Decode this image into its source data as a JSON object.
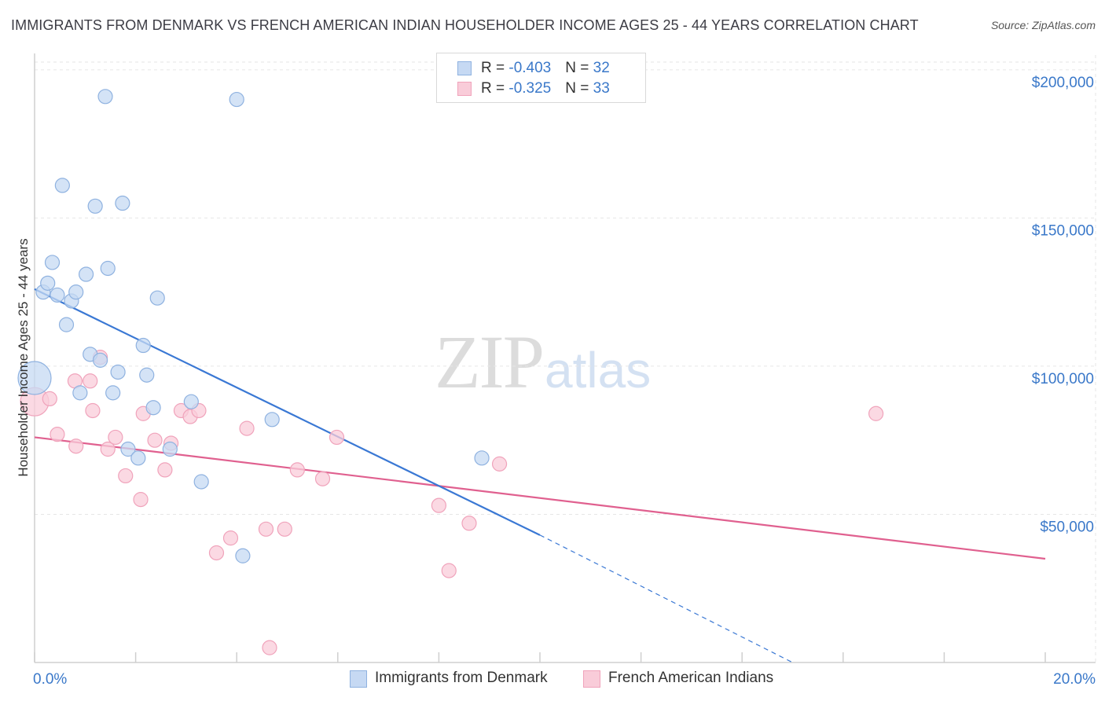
{
  "header": {
    "title": "IMMIGRANTS FROM DENMARK VS FRENCH AMERICAN INDIAN HOUSEHOLDER INCOME AGES 25 - 44 YEARS CORRELATION CHART",
    "source": "Source: ZipAtlas.com"
  },
  "watermark": {
    "zip": "ZIP",
    "atlas": "atlas"
  },
  "legend": {
    "rows": [
      {
        "r_label": "R = ",
        "r_value": "-0.403",
        "n_label": "N = ",
        "n_value": "32"
      },
      {
        "r_label": "R = ",
        "r_value": "-0.325",
        "n_label": "N = ",
        "n_value": "33"
      }
    ]
  },
  "colors": {
    "denmark_fill": "#c6d9f3",
    "denmark_stroke": "#8fb2e0",
    "denmark_line": "#3a78d4",
    "french_fill": "#f9ccd9",
    "french_stroke": "#f0a3bb",
    "french_line": "#e0608f",
    "axis_text": "#3a78c9",
    "grid": "#e6e6e6"
  },
  "chart_data": {
    "type": "scatter",
    "title": "IMMIGRANTS FROM DENMARK VS FRENCH AMERICAN INDIAN HOUSEHOLDER INCOME AGES 25 - 44 YEARS CORRELATION CHART",
    "xlabel": "",
    "ylabel": "Householder Income Ages 25 - 44 years",
    "xlim": [
      0,
      20
    ],
    "ylim": [
      0,
      205000
    ],
    "x_tick_labels": [
      "0.0%",
      "20.0%"
    ],
    "y_ticks": [
      50000,
      100000,
      150000,
      200000
    ],
    "y_tick_labels": [
      "$50,000",
      "$100,000",
      "$150,000",
      "$200,000"
    ],
    "grid": true,
    "legend_position": "top-center",
    "series": [
      {
        "name": "Immigrants from Denmark",
        "stats": {
          "R": -0.403,
          "N": 32
        },
        "points": [
          [
            0.0,
            96000
          ],
          [
            0.17,
            125000
          ],
          [
            0.26,
            128000
          ],
          [
            0.35,
            135000
          ],
          [
            0.45,
            124000
          ],
          [
            0.55,
            161000
          ],
          [
            0.63,
            114000
          ],
          [
            0.73,
            122000
          ],
          [
            0.82,
            125000
          ],
          [
            0.9,
            91000
          ],
          [
            1.02,
            131000
          ],
          [
            1.1,
            104000
          ],
          [
            1.2,
            154000
          ],
          [
            1.3,
            102000
          ],
          [
            1.4,
            191000
          ],
          [
            1.45,
            133000
          ],
          [
            1.55,
            91000
          ],
          [
            1.65,
            98000
          ],
          [
            1.74,
            155000
          ],
          [
            1.85,
            72000
          ],
          [
            2.05,
            69000
          ],
          [
            2.15,
            107000
          ],
          [
            2.22,
            97000
          ],
          [
            2.35,
            86000
          ],
          [
            2.43,
            123000
          ],
          [
            2.68,
            72000
          ],
          [
            3.1,
            88000
          ],
          [
            3.3,
            61000
          ],
          [
            4.0,
            190000
          ],
          [
            4.12,
            36000
          ],
          [
            4.7,
            82000
          ],
          [
            8.85,
            69000
          ]
        ],
        "trend": {
          "x": [
            0.0,
            10.0
          ],
          "y": [
            126000,
            43000
          ],
          "dashed_extension": {
            "x": [
              10.0,
              15.0
            ],
            "y": [
              43000,
              0
            ]
          }
        }
      },
      {
        "name": "French American Indians",
        "stats": {
          "R": -0.325,
          "N": 33
        },
        "points": [
          [
            0.0,
            88000
          ],
          [
            0.3,
            89000
          ],
          [
            0.45,
            77000
          ],
          [
            0.82,
            73000
          ],
          [
            1.1,
            95000
          ],
          [
            1.15,
            85000
          ],
          [
            1.3,
            103000
          ],
          [
            1.45,
            72000
          ],
          [
            1.6,
            76000
          ],
          [
            1.8,
            63000
          ],
          [
            2.1,
            55000
          ],
          [
            2.15,
            84000
          ],
          [
            2.38,
            75000
          ],
          [
            2.58,
            65000
          ],
          [
            2.7,
            74000
          ],
          [
            2.9,
            85000
          ],
          [
            3.08,
            83000
          ],
          [
            3.25,
            85000
          ],
          [
            3.6,
            37000
          ],
          [
            3.88,
            42000
          ],
          [
            4.2,
            79000
          ],
          [
            4.58,
            45000
          ],
          [
            4.65,
            5000
          ],
          [
            4.95,
            45000
          ],
          [
            5.2,
            65000
          ],
          [
            5.7,
            62000
          ],
          [
            5.98,
            76000
          ],
          [
            8.0,
            53000
          ],
          [
            8.2,
            31000
          ],
          [
            8.6,
            47000
          ],
          [
            9.2,
            67000
          ],
          [
            16.65,
            84000
          ],
          [
            0.8,
            95000
          ]
        ],
        "trend": {
          "x": [
            0.0,
            20.0
          ],
          "y": [
            76000,
            35000
          ]
        }
      }
    ]
  },
  "bottom_legend": [
    {
      "label": "Immigrants from Denmark"
    },
    {
      "label": "French American Indians"
    }
  ]
}
